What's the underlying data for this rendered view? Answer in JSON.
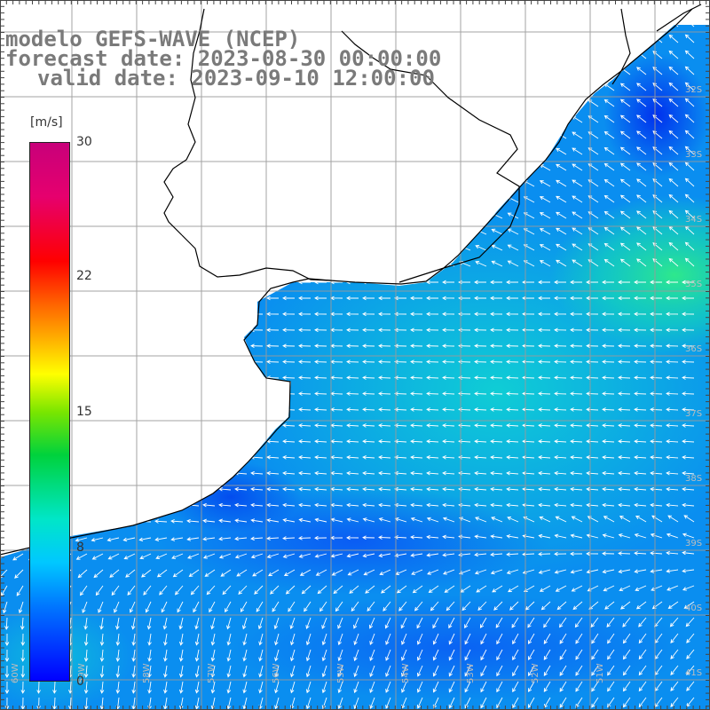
{
  "title": {
    "line1": "modelo GEFS-WAVE (NCEP)",
    "line2": "forecast date: 2023-08-30 00:00:00",
    "line3": "valid date: 2023-09-10 12:00:00"
  },
  "colorbar": {
    "unit": "[m/s]",
    "ticks": [
      "30",
      "22",
      "15",
      "8",
      "0"
    ],
    "min": 0,
    "max": 30
  },
  "colors": {
    "title": "#7a7a7a",
    "land": "#ffffff",
    "grid": "#9a9a9a",
    "coast": "#000000"
  },
  "axes": {
    "lat_labels": [
      "32S",
      "33S",
      "34S",
      "35S",
      "36S",
      "37S",
      "38S",
      "39S",
      "40S",
      "41S"
    ],
    "lon_labels": [
      "60W",
      "59W",
      "58W",
      "57W",
      "56W",
      "55W",
      "54W",
      "53W",
      "52W",
      "51W"
    ]
  }
}
